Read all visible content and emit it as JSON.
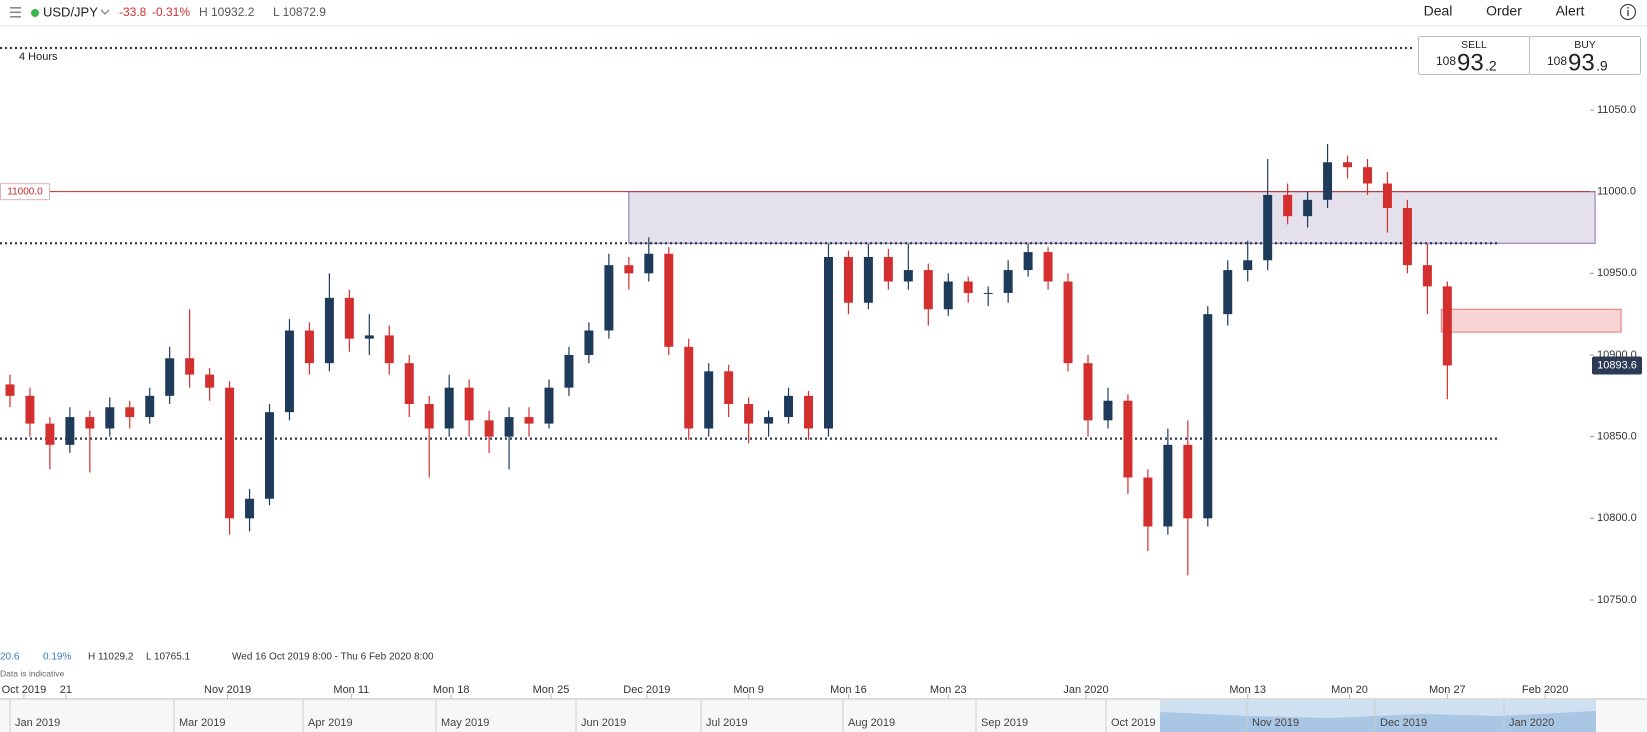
{
  "header": {
    "symbol": "USD/JPY",
    "change": "-33.8",
    "change_pct": "-0.31%",
    "high": "H 10932.2",
    "low": "L 10872.9",
    "menu": [
      "Deal",
      "Order",
      "Alert"
    ]
  },
  "quote": {
    "sell": {
      "label": "SELL",
      "big_figure": "108",
      "pips": "93",
      "fraction": ".2"
    },
    "buy": {
      "label": "BUY",
      "big_figure": "108",
      "pips": "93",
      "fraction": ".9"
    }
  },
  "timeframe": "4 Hours",
  "footer": {
    "change": "20.6",
    "change_pct": "0.19%",
    "high": "H 11029.2",
    "low": "L 10765.1",
    "range": "Wed 16 Oct 2019 8:00 - Thu 6 Feb 2020 8:00",
    "note": "Data is indicative"
  },
  "navigator": {
    "labels": [
      "Jan 2019",
      "Mar 2019",
      "Apr 2019",
      "May 2019",
      "Jun 2019",
      "Jul 2019",
      "Aug 2019",
      "Sep 2019",
      "Oct 2019",
      "Nov 2019",
      "Dec 2019",
      "Jan 2020"
    ]
  },
  "chart_data": {
    "type": "candlestick",
    "up_color": "#1f3b5c",
    "down_color": "#d32f2f",
    "ylim": [
      10720,
      11080
    ],
    "yticks": [
      {
        "value": 10750,
        "label": "10750.0"
      },
      {
        "value": 10800,
        "label": "10800.0"
      },
      {
        "value": 10850,
        "label": "10850.0"
      },
      {
        "value": 10900,
        "label": "10900.0"
      },
      {
        "value": 10950,
        "label": "10950.0"
      },
      {
        "value": 11000,
        "label": "11000.0"
      },
      {
        "value": 11050,
        "label": "11050.0"
      }
    ],
    "xlim": [
      0,
      82
    ],
    "xticks": [
      {
        "value": 1.2,
        "label": "Oct 2019"
      },
      {
        "value": 3.3,
        "label": "21"
      },
      {
        "value": 11.4,
        "label": "Nov 2019"
      },
      {
        "value": 17.6,
        "label": "Mon 11"
      },
      {
        "value": 22.6,
        "label": "Mon 18"
      },
      {
        "value": 27.6,
        "label": "Mon 25"
      },
      {
        "value": 32.4,
        "label": "Dec 2019"
      },
      {
        "value": 37.5,
        "label": "Mon 9"
      },
      {
        "value": 42.5,
        "label": "Mon 16"
      },
      {
        "value": 47.5,
        "label": "Mon 23"
      },
      {
        "value": 54.4,
        "label": "Jan 2020"
      },
      {
        "value": 62.5,
        "label": "Mon 13"
      },
      {
        "value": 67.6,
        "label": "Mon 20"
      },
      {
        "value": 72.5,
        "label": "Mon 27"
      },
      {
        "value": 77.4,
        "label": "Feb 2020"
      }
    ],
    "x": [
      0.5,
      1.5,
      2.5,
      3.5,
      4.5,
      5.5,
      6.5,
      7.5,
      8.5,
      9.5,
      10.5,
      11.5,
      12.5,
      13.5,
      14.5,
      15.5,
      16.5,
      17.5,
      18.5,
      19.5,
      20.5,
      21.5,
      22.5,
      23.5,
      24.5,
      25.5,
      26.5,
      27.5,
      28.5,
      29.5,
      30.5,
      31.5,
      32.5,
      33.5,
      34.5,
      35.5,
      36.5,
      37.5,
      38.5,
      39.5,
      40.5,
      41.5,
      42.5,
      43.5,
      44.5,
      45.5,
      46.5,
      47.5,
      48.5,
      49.5,
      50.5,
      51.5,
      52.5,
      53.5,
      54.5,
      55.5,
      56.5,
      57.5,
      58.5,
      59.5,
      60.5,
      61.5,
      62.5,
      63.5,
      64.5,
      65.5,
      66.5,
      67.5,
      68.5,
      69.5,
      70.5,
      71.5,
      72.5
    ],
    "open": [
      10882,
      10875,
      10858,
      10845,
      10862,
      10855,
      10868,
      10862,
      10875,
      10898,
      10888,
      10880,
      10800,
      10812,
      10865,
      10915,
      10895,
      10935,
      10910,
      10912,
      10895,
      10870,
      10855,
      10880,
      10860,
      10850,
      10862,
      10858,
      10880,
      10900,
      10915,
      10955,
      10950,
      10962,
      10905,
      10855,
      10890,
      10870,
      10858,
      10862,
      10875,
      10855,
      10960,
      10932,
      10960,
      10945,
      10952,
      10928,
      10945,
      10938,
      10938,
      10952,
      10963,
      10945,
      10895,
      10860,
      10872,
      10825,
      10795,
      10845,
      10800,
      10925,
      10952,
      10958,
      10998,
      10985,
      10995,
      11018,
      11015,
      11005,
      10990,
      10955,
      10942
    ],
    "high": [
      10888,
      10880,
      10862,
      10868,
      10866,
      10874,
      10872,
      10880,
      10905,
      10928,
      10892,
      10884,
      10818,
      10870,
      10922,
      10920,
      10950,
      10940,
      10925,
      10918,
      10900,
      10875,
      10888,
      10885,
      10866,
      10868,
      10868,
      10885,
      10905,
      10920,
      10962,
      10960,
      10972,
      10966,
      10910,
      10895,
      10894,
      10874,
      10866,
      10880,
      10878,
      10968,
      10964,
      10968,
      10965,
      10968,
      10956,
      10950,
      10948,
      10942,
      10958,
      10968,
      10966,
      10950,
      10900,
      10880,
      10876,
      10830,
      10855,
      10860,
      10930,
      10958,
      10970,
      11020,
      11005,
      11000,
      11029.2,
      11022,
      11020,
      11012,
      10995,
      10968,
      10945
    ],
    "low": [
      10868,
      10850,
      10830,
      10840,
      10828,
      10850,
      10855,
      10858,
      10870,
      10880,
      10872,
      10790,
      10792,
      10808,
      10860,
      10888,
      10890,
      10902,
      10900,
      10888,
      10862,
      10825,
      10850,
      10850,
      10840,
      10830,
      10850,
      10855,
      10875,
      10895,
      10910,
      10940,
      10945,
      10900,
      10848,
      10850,
      10862,
      10846,
      10850,
      10858,
      10848,
      10850,
      10925,
      10928,
      10940,
      10940,
      10918,
      10924,
      10932,
      10930,
      10932,
      10948,
      10940,
      10890,
      10850,
      10855,
      10815,
      10780,
      10790,
      10765.1,
      10795,
      10918,
      10945,
      10952,
      10980,
      10978,
      10990,
      11008,
      10998,
      10975,
      10950,
      10925,
      10872.9
    ],
    "close": [
      10875,
      10858,
      10845,
      10862,
      10855,
      10868,
      10862,
      10875,
      10898,
      10888,
      10880,
      10800,
      10812,
      10865,
      10915,
      10895,
      10935,
      10910,
      10912,
      10895,
      10870,
      10855,
      10880,
      10860,
      10850,
      10862,
      10858,
      10880,
      10900,
      10915,
      10955,
      10950,
      10962,
      10905,
      10855,
      10890,
      10870,
      10858,
      10862,
      10875,
      10855,
      10960,
      10932,
      10960,
      10945,
      10952,
      10928,
      10945,
      10938,
      10938,
      10952,
      10963,
      10945,
      10895,
      10860,
      10872,
      10825,
      10795,
      10845,
      10800,
      10925,
      10952,
      10958,
      10998,
      10985,
      10995,
      11018,
      11015,
      11005,
      10990,
      10955,
      10942,
      10893.6
    ],
    "support_lines": [
      10968.4,
      10848.8
    ],
    "alert_line": {
      "value": 11000,
      "label": "11000.0",
      "color": "#c62828"
    },
    "zones": [
      {
        "from": 11000,
        "to": 10968.4,
        "x_from": 31.5,
        "x_to": 79.9,
        "color": "#e4e0ec",
        "border": "#8a6fa8"
      },
      {
        "from": 10928,
        "to": 10914,
        "x_from": 72.2,
        "x_to": 81.2,
        "color": "#f9d4d4",
        "border": "#e57373"
      }
    ]
  }
}
